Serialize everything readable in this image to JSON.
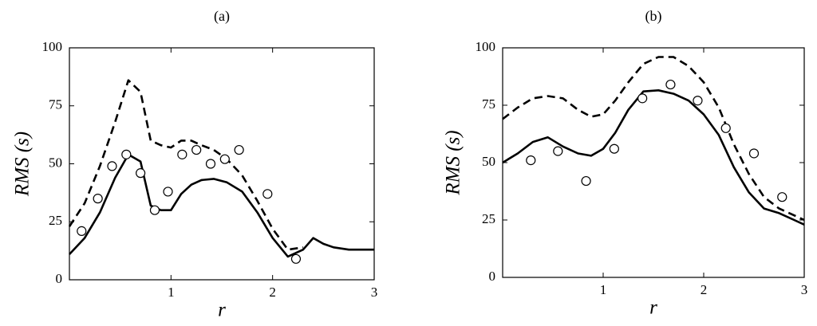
{
  "chart_data": [
    {
      "type": "line",
      "title": "(a)",
      "xlabel": "r",
      "ylabel": "RMS (s)",
      "xlim": [
        0,
        3
      ],
      "ylim": [
        0,
        100
      ],
      "xticks": [
        1,
        2,
        3
      ],
      "yticks": [
        0,
        25,
        50,
        75,
        100
      ],
      "grid": false,
      "series": [
        {
          "style": "solid",
          "x": [
            0,
            0.15,
            0.3,
            0.45,
            0.58,
            0.7,
            0.8,
            0.9,
            1.0,
            1.1,
            1.2,
            1.3,
            1.42,
            1.55,
            1.7,
            1.85,
            2.0,
            2.15,
            2.3,
            2.4,
            2.5,
            2.6,
            2.75,
            3.0
          ],
          "y": [
            11,
            18,
            29,
            44,
            54,
            51,
            32,
            30,
            30,
            37,
            41,
            43,
            43.5,
            42,
            38,
            29,
            18,
            10,
            13,
            18,
            15.5,
            14,
            13,
            13
          ]
        },
        {
          "style": "dashed",
          "x": [
            0,
            0.15,
            0.3,
            0.45,
            0.58,
            0.7,
            0.8,
            0.9,
            1.0,
            1.1,
            1.2,
            1.3,
            1.42,
            1.55,
            1.7,
            1.85,
            2.0,
            2.15,
            2.3
          ],
          "y": [
            23,
            33,
            49,
            68,
            86,
            81,
            60,
            58,
            57,
            60,
            60,
            58,
            56,
            52,
            45,
            34,
            22,
            13,
            14
          ]
        },
        {
          "style": "markers",
          "x": [
            0.12,
            0.28,
            0.42,
            0.56,
            0.7,
            0.84,
            0.97,
            1.11,
            1.25,
            1.39,
            1.53,
            1.67,
            1.95,
            2.23
          ],
          "y": [
            21,
            35,
            49,
            54,
            46,
            30,
            38,
            54,
            56,
            50,
            52,
            56,
            37,
            9
          ]
        }
      ]
    },
    {
      "type": "line",
      "title": "(b)",
      "xlabel": "r",
      "ylabel": "RMS (s)",
      "xlim": [
        0,
        3
      ],
      "ylim": [
        0,
        100
      ],
      "xticks": [
        1,
        2,
        3
      ],
      "yticks": [
        0,
        25,
        50,
        75,
        100
      ],
      "grid": false,
      "series": [
        {
          "style": "solid",
          "x": [
            0,
            0.15,
            0.3,
            0.45,
            0.6,
            0.75,
            0.88,
            1.0,
            1.12,
            1.25,
            1.4,
            1.55,
            1.7,
            1.85,
            2.0,
            2.15,
            2.3,
            2.45,
            2.6,
            2.75,
            2.9,
            3.0
          ],
          "y": [
            50,
            54,
            59,
            61,
            57,
            54,
            53,
            56,
            63,
            73,
            81,
            81.5,
            80,
            77,
            71,
            62,
            48,
            37,
            30,
            28,
            25,
            23
          ]
        },
        {
          "style": "dashed",
          "x": [
            0,
            0.15,
            0.3,
            0.45,
            0.6,
            0.75,
            0.88,
            1.0,
            1.12,
            1.25,
            1.4,
            1.55,
            1.7,
            1.85,
            2.0,
            2.15,
            2.3,
            2.45,
            2.6,
            2.75,
            2.9,
            3.0
          ],
          "y": [
            69,
            74,
            78,
            79,
            78,
            73,
            70,
            71,
            77,
            85,
            93,
            96,
            96,
            92,
            85,
            74,
            58,
            45,
            35,
            30,
            27,
            25
          ]
        },
        {
          "style": "markers",
          "x": [
            0.28,
            0.55,
            0.83,
            1.11,
            1.39,
            1.67,
            1.94,
            2.22,
            2.5,
            2.78
          ],
          "y": [
            51,
            55,
            42,
            56,
            78,
            84,
            77,
            65,
            54,
            35
          ]
        }
      ]
    }
  ]
}
